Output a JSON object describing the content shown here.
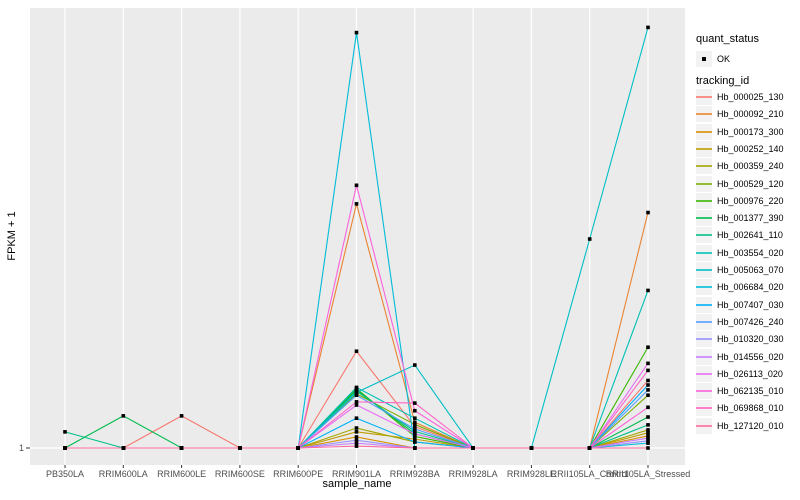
{
  "chart": {
    "y_axis": {
      "label": "FPKM + 1",
      "tick": "1"
    },
    "x_axis": {
      "label": "sample_name"
    }
  },
  "colors": {
    "panel_background": "#EBEBEB",
    "gridline": "#FFFFFF",
    "marker": "#000000",
    "axis_text": "#4D4D4D",
    "legend_key_background": "#F2F2F2"
  },
  "chart_data": {
    "type": "line",
    "title": "",
    "xlabel": "sample_name",
    "ylabel": "FPKM + 1",
    "y_scale": "log10",
    "y_ticks": [
      "1"
    ],
    "y_axis_range_fpkm_plus_1": [
      1,
      1000
    ],
    "grid": "on",
    "legend_position": "right",
    "marker_shape": "small-black-square",
    "quant_status": {
      "title": "quant_status",
      "levels": [
        "OK"
      ]
    },
    "series_group": "tracking_id",
    "categories": [
      "PB350LA",
      "RRIM600LA",
      "RRIM600LE",
      "RRIM600SE",
      "RRIM600PE",
      "RRIM901LA",
      "RRIM928BA",
      "RRIM928LA",
      "RRIM928LE",
      "RRII105LA_Control",
      "RRII105LA_Stressed"
    ],
    "series": [
      {
        "name": "Hb_000025_130",
        "color": "#F8766D",
        "values": [
          1,
          1,
          1.66,
          1,
          1,
          4.6,
          1.4,
          1,
          1,
          1,
          2.9
        ]
      },
      {
        "name": "Hb_000092_210",
        "color": "#EA8331",
        "values": [
          1,
          1,
          1,
          1,
          1,
          47,
          1.5,
          1,
          1,
          1,
          41
        ]
      },
      {
        "name": "Hb_000173_300",
        "color": "#D89000",
        "values": [
          1,
          1,
          1,
          1,
          1,
          1.19,
          1,
          1,
          1,
          1,
          1.21
        ]
      },
      {
        "name": "Hb_000252_140",
        "color": "#C09B00",
        "values": [
          1,
          1,
          1,
          1,
          1,
          1.29,
          1.15,
          1,
          1,
          1,
          1.27
        ]
      },
      {
        "name": "Hb_000359_240",
        "color": "#A3A500",
        "values": [
          1,
          1,
          1,
          1,
          1,
          1.37,
          1.1,
          1,
          1,
          1,
          1.33
        ]
      },
      {
        "name": "Hb_000529_120",
        "color": "#7CAE00",
        "values": [
          1,
          1,
          1,
          1,
          1,
          2.35,
          1.45,
          1,
          1,
          1,
          2.3
        ]
      },
      {
        "name": "Hb_000976_220",
        "color": "#39B600",
        "values": [
          1,
          1,
          1,
          1,
          1,
          2.55,
          1.2,
          1,
          1,
          1,
          4.9
        ]
      },
      {
        "name": "Hb_001377_390",
        "color": "#00BB4E",
        "values": [
          1,
          1.66,
          1,
          1,
          1,
          2.5,
          1.25,
          1,
          1,
          1,
          1.63
        ]
      },
      {
        "name": "Hb_002641_110",
        "color": "#00C087",
        "values": [
          1.29,
          1,
          1,
          1,
          1,
          2.45,
          1.3,
          1,
          1,
          1,
          1.44
        ]
      },
      {
        "name": "Hb_003554_020",
        "color": "#00C0B4",
        "values": [
          1,
          1,
          1,
          1,
          1,
          2.6,
          1.6,
          1,
          1,
          1,
          12
        ]
      },
      {
        "name": "Hb_005063_070",
        "color": "#00BFC4",
        "values": [
          1,
          1,
          1,
          1,
          1,
          2.4,
          3.7,
          1,
          1,
          27,
          760
        ]
      },
      {
        "name": "Hb_006684_020",
        "color": "#00BCD8",
        "values": [
          1,
          1,
          1,
          1,
          1,
          700,
          1,
          1,
          1,
          1,
          1.08
        ]
      },
      {
        "name": "Hb_007407_030",
        "color": "#00B0F6",
        "values": [
          1,
          1,
          1,
          1,
          1,
          1.6,
          1.1,
          1,
          1,
          1,
          2.7
        ]
      },
      {
        "name": "Hb_007426_240",
        "color": "#529EFF",
        "values": [
          1,
          1,
          1,
          1,
          1,
          2.3,
          1.35,
          1,
          1,
          1,
          2.5
        ]
      },
      {
        "name": "Hb_010320_030",
        "color": "#9590FF",
        "values": [
          1,
          1,
          1,
          1,
          1,
          1.13,
          1,
          1,
          1,
          1,
          1.12
        ]
      },
      {
        "name": "Hb_014556_020",
        "color": "#C77CFF",
        "values": [
          1,
          1,
          1,
          1,
          1,
          1.08,
          1,
          1,
          1,
          1,
          1.17
        ]
      },
      {
        "name": "Hb_026113_020",
        "color": "#E76BF3",
        "values": [
          1,
          1,
          1,
          1,
          1,
          1.97,
          1.25,
          1,
          1,
          1,
          3.8
        ]
      },
      {
        "name": "Hb_062135_010",
        "color": "#FA62DB",
        "values": [
          1,
          1,
          1,
          1,
          1,
          63,
          1.8,
          1,
          1,
          1,
          1.9
        ]
      },
      {
        "name": "Hb_069868_010",
        "color": "#FF61C7",
        "values": [
          1,
          1,
          1,
          1,
          1,
          2.07,
          2.03,
          1,
          1,
          1,
          3.4
        ]
      },
      {
        "name": "Hb_127120_010",
        "color": "#FF689E",
        "values": [
          1,
          1,
          1,
          1,
          1,
          1.03,
          1,
          1,
          1,
          1,
          1
        ]
      }
    ]
  }
}
